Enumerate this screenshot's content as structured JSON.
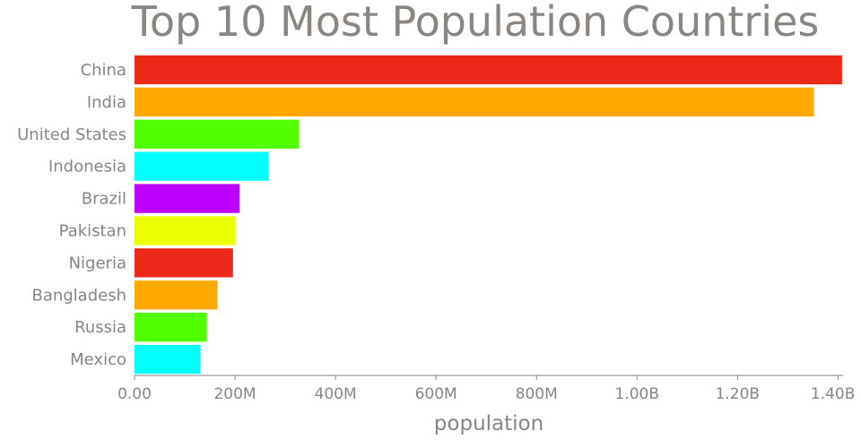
{
  "chart_data": {
    "type": "bar",
    "orientation": "horizontal",
    "title": "Top 10 Most Population Countries",
    "xlabel": "population",
    "ylabel": "",
    "xlim": [
      0,
      1410000000
    ],
    "grid": false,
    "legend": "none",
    "categories": [
      "China",
      "India",
      "United States",
      "Indonesia",
      "Brazil",
      "Pakistan",
      "Nigeria",
      "Bangladesh",
      "Russia",
      "Mexico"
    ],
    "values": [
      1408000000,
      1352000000,
      327000000,
      267000000,
      209000000,
      201000000,
      196000000,
      165000000,
      144000000,
      131000000
    ],
    "bar_colors": [
      "#ec2818",
      "#fea800",
      "#52ff00",
      "#00ffff",
      "#bd00ff",
      "#ebff00",
      "#ec2818",
      "#fea800",
      "#52ff00",
      "#00ffff"
    ],
    "x_ticks": [
      {
        "value": 0,
        "label": "0.00"
      },
      {
        "value": 200000000,
        "label": "200M"
      },
      {
        "value": 400000000,
        "label": "400M"
      },
      {
        "value": 600000000,
        "label": "600M"
      },
      {
        "value": 800000000,
        "label": "800M"
      },
      {
        "value": 1000000000,
        "label": "1.00B"
      },
      {
        "value": 1200000000,
        "label": "1.20B"
      },
      {
        "value": 1400000000,
        "label": "1.40B"
      }
    ],
    "text_color": "#8a8580"
  }
}
